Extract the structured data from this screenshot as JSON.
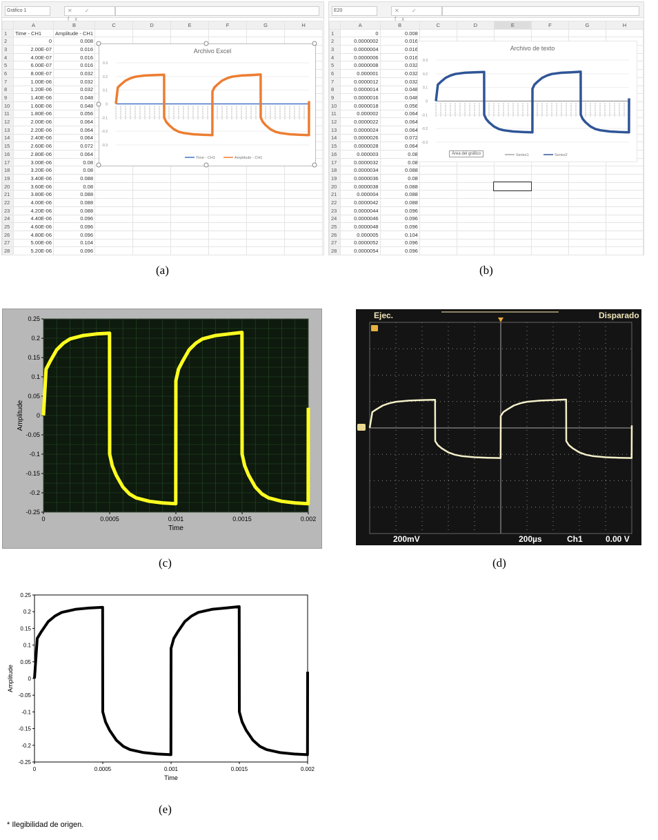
{
  "captions": {
    "a": "(a)",
    "b": "(b)",
    "c": "(c)",
    "d": "(d)",
    "e": "(e)"
  },
  "footnote": "* Ilegibilidad de origen.",
  "sheet_a": {
    "name_box": "Gráfico 1",
    "fx_icons": "✕ ✓ fx",
    "columns": [
      "A",
      "B",
      "C",
      "D",
      "E",
      "F",
      "G",
      "H"
    ],
    "header_row": [
      "Time - CH1",
      "Amplitude - CH1"
    ],
    "rows": [
      [
        "0",
        "0.008"
      ],
      [
        "2.00E-07",
        "0.016"
      ],
      [
        "4.00E-07",
        "0.016"
      ],
      [
        "6.00E-07",
        "0.016"
      ],
      [
        "8.00E-07",
        "0.032"
      ],
      [
        "1.00E-06",
        "0.032"
      ],
      [
        "1.20E-06",
        "0.032"
      ],
      [
        "1.40E-06",
        "0.048"
      ],
      [
        "1.60E-06",
        "0.048"
      ],
      [
        "1.80E-06",
        "0.056"
      ],
      [
        "2.00E-06",
        "0.064"
      ],
      [
        "2.20E-06",
        "0.064"
      ],
      [
        "2.40E-06",
        "0.064"
      ],
      [
        "2.60E-06",
        "0.072"
      ],
      [
        "2.80E-06",
        "0.064"
      ],
      [
        "3.00E-06",
        "0.08"
      ],
      [
        "3.20E-06",
        "0.08"
      ],
      [
        "3.40E-06",
        "0.088"
      ],
      [
        "3.60E-06",
        "0.08"
      ],
      [
        "3.80E-06",
        "0.088"
      ],
      [
        "4.00E-06",
        "0.088"
      ],
      [
        "4.20E-06",
        "0.088"
      ],
      [
        "4.40E-06",
        "0.096"
      ],
      [
        "4.60E-06",
        "0.096"
      ],
      [
        "4.80E-06",
        "0.096"
      ],
      [
        "5.00E-06",
        "0.104"
      ],
      [
        "5.20E-06",
        "0.096"
      ]
    ]
  },
  "sheet_b": {
    "name_box": "E20",
    "fx_icons": "✕ ✓ fx",
    "columns": [
      "A",
      "B",
      "C",
      "D",
      "E",
      "F",
      "G",
      "H"
    ],
    "selected_cell": "E20",
    "rows": [
      [
        "0",
        "0.008"
      ],
      [
        "0.0000002",
        "0.016"
      ],
      [
        "0.0000004",
        "0.016"
      ],
      [
        "0.0000006",
        "0.016"
      ],
      [
        "0.0000008",
        "0.032"
      ],
      [
        "0.000001",
        "0.032"
      ],
      [
        "0.0000012",
        "0.032"
      ],
      [
        "0.0000014",
        "0.048"
      ],
      [
        "0.0000016",
        "0.048"
      ],
      [
        "0.0000018",
        "0.056"
      ],
      [
        "0.000002",
        "0.064"
      ],
      [
        "0.0000022",
        "0.064"
      ],
      [
        "0.0000024",
        "0.064"
      ],
      [
        "0.0000026",
        "0.072"
      ],
      [
        "0.0000028",
        "0.064"
      ],
      [
        "0.000003",
        "0.08"
      ],
      [
        "0.0000032",
        "0.08"
      ],
      [
        "0.0000034",
        "0.088"
      ],
      [
        "0.0000036",
        "0.08"
      ],
      [
        "0.0000038",
        "0.088"
      ],
      [
        "0.000004",
        "0.088"
      ],
      [
        "0.0000042",
        "0.088"
      ],
      [
        "0.0000044",
        "0.096"
      ],
      [
        "0.0000046",
        "0.096"
      ],
      [
        "0.0000048",
        "0.096"
      ],
      [
        "0.000005",
        "0.104"
      ],
      [
        "0.0000052",
        "0.096"
      ],
      [
        "0.0000054",
        "0.096"
      ]
    ]
  },
  "scope": {
    "status": "Ejec.",
    "trigger_state": "Disparado",
    "volts_div": "200mV",
    "time_div": "200µs",
    "channel": "Ch1",
    "trigger_level": "0.00 V",
    "trace_color": "#f4efc8"
  },
  "chart_data": [
    {
      "id": "a",
      "type": "line",
      "title": "Archivo Excel",
      "ylim": [
        -0.3,
        0.3
      ],
      "yticks": [
        "0.3",
        "0.2",
        "0.1",
        "0",
        "-0.1",
        "-0.2",
        "-0.3"
      ],
      "grid": true,
      "legend": "bottom",
      "series": [
        {
          "name": "Time - CH1",
          "color": "#4472c4",
          "flat": 0
        },
        {
          "name": "Amplitude - CH1",
          "color": "#ed7d31"
        }
      ]
    },
    {
      "id": "b",
      "type": "line",
      "title": "Archivo de texto",
      "ylim": [
        -0.3,
        0.3
      ],
      "yticks": [
        "0.3",
        "0.2",
        "0.1",
        "0",
        "-0.1",
        "-0.2",
        "-0.3"
      ],
      "grid": true,
      "legend": "bottom",
      "tooltip": "Área del gráfico",
      "series": [
        {
          "name": "Series1",
          "color": "#a5a5a5",
          "flat": 0
        },
        {
          "name": "Series2",
          "color": "#2f5597"
        }
      ]
    },
    {
      "id": "c",
      "type": "line",
      "xlabel": "Time",
      "ylabel": "Amplitude",
      "xlim": [
        0,
        0.002
      ],
      "ylim": [
        -0.25,
        0.25
      ],
      "xticks": [
        "0",
        "0.0005",
        "0.001",
        "0.0015",
        "0.002"
      ],
      "yticks": [
        "0.25",
        "0.2",
        "0.15",
        "0.1",
        "0.05",
        "0",
        "-0.05",
        "-0.1",
        "-0.15",
        "-0.2",
        "-0.25"
      ],
      "grid": true,
      "color": "#ffff20",
      "background": "#0d1a0d"
    },
    {
      "id": "d",
      "type": "line",
      "xlim": [
        0,
        0.002
      ],
      "ylim": [
        -0.8,
        0.8
      ],
      "grid": true
    },
    {
      "id": "e",
      "type": "line",
      "xlabel": "Time",
      "ylabel": "Amplitude",
      "xlim": [
        0,
        0.002
      ],
      "ylim": [
        -0.25,
        0.25
      ],
      "xticks": [
        "0",
        "0.0005",
        "0.001",
        "0.0015",
        "0.002"
      ],
      "yticks": [
        "0.25",
        "0.2",
        "0.15",
        "0.1",
        "0.05",
        "0",
        "-0.05",
        "-0.1",
        "-0.15",
        "-0.2",
        "-0.25"
      ],
      "grid": false,
      "color": "#000000"
    }
  ],
  "waveform": {
    "x": [
      0,
      2e-05,
      5e-05,
      0.0001,
      0.00015,
      0.0002,
      0.0003,
      0.0004,
      0.000499,
      0.0005,
      0.00052,
      0.00055,
      0.0006,
      0.00065,
      0.0007,
      0.0008,
      0.0009,
      0.000999,
      0.001,
      0.00102,
      0.00105,
      0.0011,
      0.00115,
      0.0012,
      0.0013,
      0.0014,
      0.001499,
      0.0015,
      0.00152,
      0.00155,
      0.0016,
      0.00165,
      0.0017,
      0.0018,
      0.0019,
      0.001999,
      0.002
    ],
    "y": [
      0,
      0.12,
      0.14,
      0.17,
      0.187,
      0.198,
      0.207,
      0.211,
      0.213,
      -0.1,
      -0.13,
      -0.155,
      -0.185,
      -0.203,
      -0.213,
      -0.222,
      -0.226,
      -0.228,
      0.09,
      0.12,
      0.14,
      0.17,
      0.187,
      0.198,
      0.207,
      0.211,
      0.215,
      -0.1,
      -0.13,
      -0.155,
      -0.185,
      -0.203,
      -0.213,
      -0.222,
      -0.226,
      -0.228,
      0.02
    ]
  }
}
